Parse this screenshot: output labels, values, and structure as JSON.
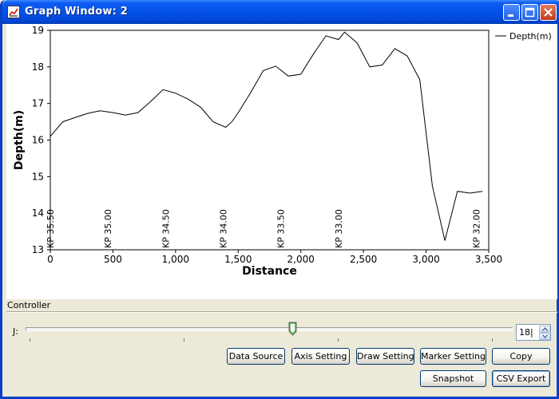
{
  "window": {
    "title": "Graph Window: 2"
  },
  "chart_data": {
    "type": "line",
    "xlabel": "Distance",
    "ylabel": "Depth(m)",
    "xlim": [
      0,
      3500
    ],
    "ylim": [
      13,
      19
    ],
    "xticks": [
      0,
      500,
      1000,
      1500,
      2000,
      2500,
      3000,
      3500
    ],
    "xtick_labels": [
      "0",
      "500",
      "1,000",
      "1,500",
      "2,000",
      "2,500",
      "3,000",
      "3,500"
    ],
    "yticks": [
      13,
      14,
      15,
      16,
      17,
      18,
      19
    ],
    "ytick_labels": [
      "13",
      "14",
      "15",
      "16",
      "17",
      "18",
      "19"
    ],
    "legend_position": "top-right",
    "series": [
      {
        "name": "Depth(m)",
        "color": "#000000",
        "x": [
          0,
          100,
          200,
          300,
          400,
          500,
          600,
          700,
          800,
          900,
          1000,
          1100,
          1200,
          1300,
          1400,
          1450,
          1500,
          1600,
          1700,
          1800,
          1900,
          2000,
          2100,
          2200,
          2300,
          2350,
          2450,
          2550,
          2650,
          2750,
          2850,
          2950,
          3050,
          3150,
          3250,
          3350,
          3450
        ],
        "y": [
          16.1,
          16.5,
          16.62,
          16.73,
          16.8,
          16.75,
          16.68,
          16.75,
          17.05,
          17.38,
          17.28,
          17.12,
          16.9,
          16.5,
          16.35,
          16.5,
          16.75,
          17.3,
          17.9,
          18.02,
          17.75,
          17.8,
          18.35,
          18.85,
          18.75,
          18.95,
          18.65,
          18.0,
          18.05,
          18.5,
          18.3,
          17.65,
          14.75,
          13.25,
          14.6,
          14.55,
          14.6
        ]
      }
    ],
    "annotations": [
      {
        "x": 0,
        "label": "KP 35.50"
      },
      {
        "x": 460,
        "label": "KP 35.00"
      },
      {
        "x": 920,
        "label": "KP 34.50"
      },
      {
        "x": 1380,
        "label": "KP 34.00"
      },
      {
        "x": 1840,
        "label": "KP 33.50"
      },
      {
        "x": 2300,
        "label": "KP 33.00"
      },
      {
        "x": 3400,
        "label": "KP 32.00"
      }
    ]
  },
  "controller": {
    "label": "Controller",
    "slider_label": "J:",
    "slider_fraction": 0.55,
    "spin_value": "18|"
  },
  "buttons": {
    "data_source": "Data Source",
    "axis_setting": "Axis Setting",
    "draw_setting": "Draw Setting",
    "marker_setting": "Marker Setting",
    "copy": "Copy",
    "snapshot": "Snapshot",
    "csv_export": "CSV Export"
  }
}
